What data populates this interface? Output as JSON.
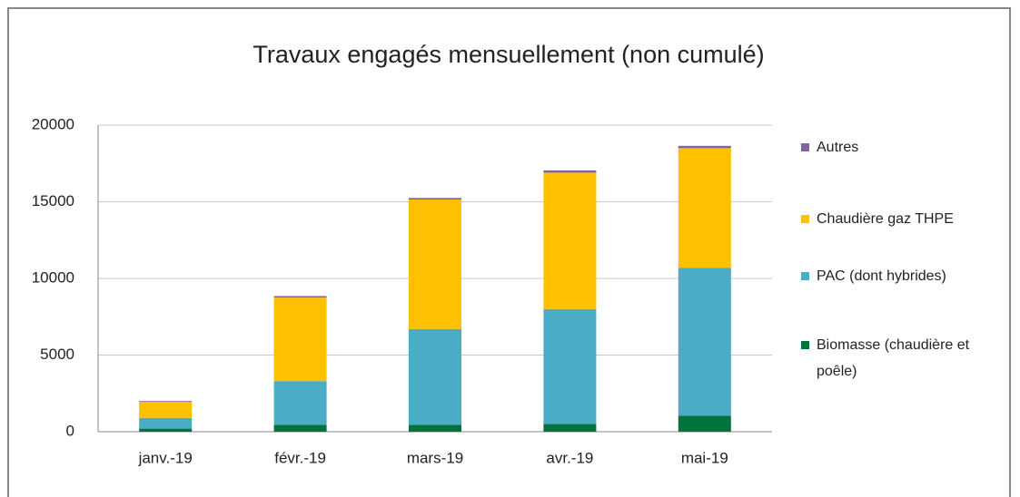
{
  "chart_data": {
    "type": "stacked_bar",
    "title": "Travaux engagés mensuellement (non cumulé)",
    "categories": [
      "janv.-19",
      "févr.-19",
      "mars-19",
      "avr.-19",
      "mai-19"
    ],
    "series": [
      {
        "name": "Biomasse (chaudière et poêle)",
        "color": "#00733c",
        "values": [
          200,
          450,
          450,
          500,
          1050
        ]
      },
      {
        "name": "PAC (dont hybrides)",
        "color": "#4bacc6",
        "values": [
          700,
          2850,
          6250,
          7500,
          9650
        ]
      },
      {
        "name": "Chaudière gaz THPE",
        "color": "#ffc000",
        "values": [
          1050,
          5450,
          8450,
          8900,
          7800
        ]
      },
      {
        "name": "Autres",
        "color": "#8064a2",
        "values": [
          50,
          100,
          100,
          150,
          150
        ]
      }
    ],
    "ylim": [
      0,
      20000
    ],
    "yticks": [
      0,
      5000,
      10000,
      15000,
      20000
    ],
    "grid": true,
    "legend": "right"
  }
}
